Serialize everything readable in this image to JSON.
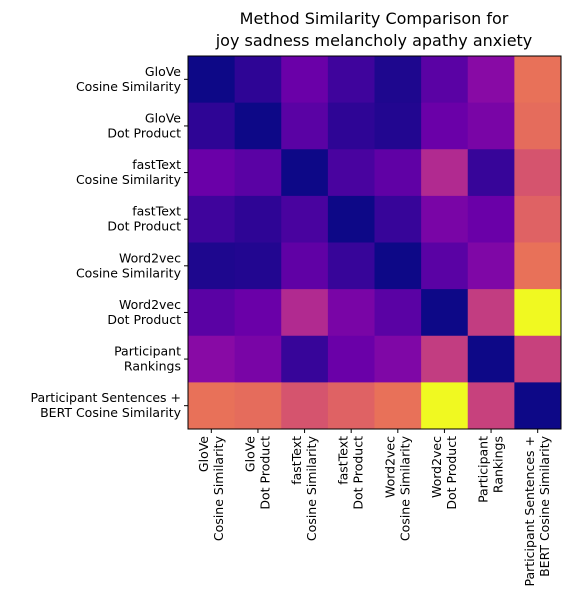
{
  "chart_data": {
    "type": "heatmap",
    "title": [
      "Method Similarity Comparison for",
      "joy sadness melancholy apathy anxiety"
    ],
    "colormap": "plasma",
    "labels": [
      [
        "GloVe",
        "Cosine Similarity"
      ],
      [
        "GloVe",
        "Dot Product"
      ],
      [
        "fastText",
        "Cosine Similarity"
      ],
      [
        "fastText",
        "Dot Product"
      ],
      [
        "Word2vec",
        "Cosine Similarity"
      ],
      [
        "Word2vec",
        "Dot Product"
      ],
      [
        "Participant",
        "Rankings"
      ],
      [
        "Participant Sentences +",
        "BERT Cosine Similarity"
      ]
    ],
    "values": [
      [
        0.0,
        0.08,
        0.25,
        0.12,
        0.04,
        0.2,
        0.35,
        0.8
      ],
      [
        0.08,
        0.0,
        0.2,
        0.08,
        0.05,
        0.25,
        0.3,
        0.78
      ],
      [
        0.25,
        0.2,
        0.0,
        0.15,
        0.22,
        0.5,
        0.1,
        0.68
      ],
      [
        0.12,
        0.08,
        0.15,
        0.0,
        0.1,
        0.3,
        0.25,
        0.74
      ],
      [
        0.04,
        0.05,
        0.22,
        0.1,
        0.0,
        0.2,
        0.32,
        0.8
      ],
      [
        0.2,
        0.25,
        0.5,
        0.3,
        0.2,
        0.0,
        0.58,
        1.0
      ],
      [
        0.35,
        0.3,
        0.1,
        0.25,
        0.32,
        0.58,
        0.0,
        0.6
      ],
      [
        0.8,
        0.78,
        0.68,
        0.74,
        0.8,
        1.0,
        0.6,
        0.0
      ]
    ],
    "grid": false,
    "colorbar": false
  }
}
